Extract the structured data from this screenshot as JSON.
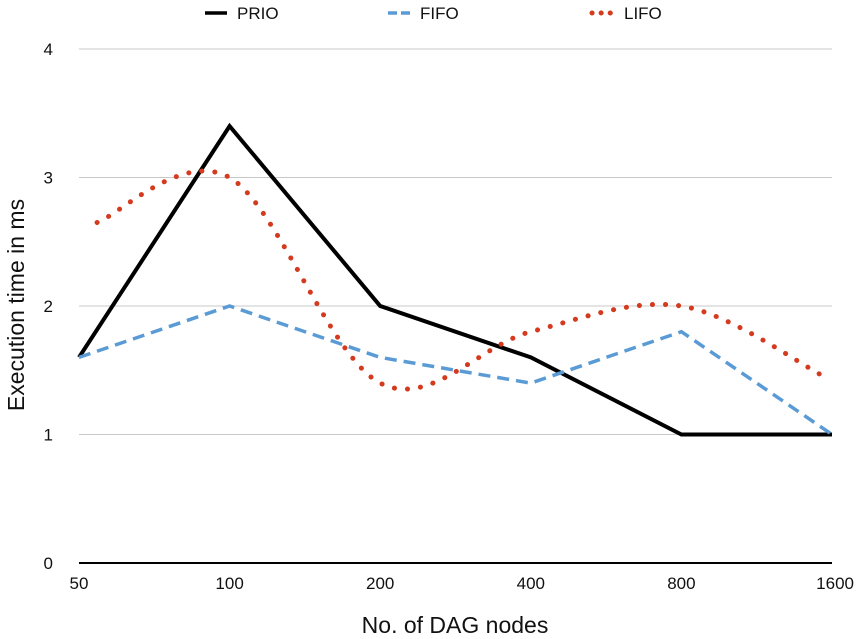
{
  "chart_data": {
    "type": "line",
    "title": "",
    "xlabel": "No. of DAG nodes",
    "ylabel": "Execution time in ms",
    "categories": [
      "50",
      "100",
      "200",
      "400",
      "800",
      "1600"
    ],
    "ylim": [
      0,
      4
    ],
    "yticks": [
      "0",
      "1",
      "2",
      "3",
      "4"
    ],
    "grid": true,
    "legend_position": "top",
    "series": [
      {
        "name": "PRIO",
        "color": "#000000",
        "style": "solid",
        "values": [
          1.6,
          3.4,
          2.0,
          1.6,
          1.0,
          1.0
        ]
      },
      {
        "name": "FIFO",
        "color": "#5b9bd5",
        "style": "dashed",
        "values": [
          1.6,
          2.0,
          1.6,
          1.4,
          1.8,
          1.0
        ]
      },
      {
        "name": "LIFO",
        "color": "#d43a1e",
        "style": "dotted",
        "x": [
          0.12,
          1.0,
          2.0,
          3.0,
          4.0,
          4.95
        ],
        "values": [
          2.65,
          3.0,
          1.4,
          1.8,
          2.0,
          1.45
        ]
      }
    ]
  }
}
